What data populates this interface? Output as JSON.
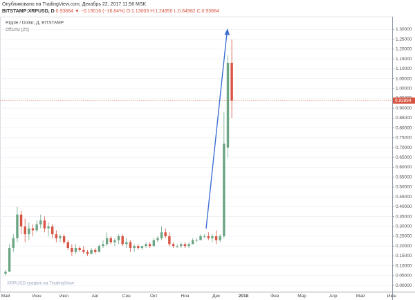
{
  "header": {
    "published": "Опубликовано на TradingView.com, Декабрь 22, 2017 11:56 MSK",
    "symbol": "BITSTAMP:XRPUSD, D",
    "change": "0.93884 ▼ −0.19016 (−16.84%)",
    "ohlc": "O:1.13003 H:1.24950 L:0.84982 C:0.93884"
  },
  "chart_data": {
    "type": "candlestick",
    "title": "Ripple / Dollar, Д, BITSTAMP",
    "indicator": "Объём (20)",
    "watermark": "XRPUSD график на TradingView",
    "categories": [
      "Май",
      null,
      null,
      null,
      null,
      null,
      null,
      null,
      "Июн",
      null,
      null,
      null,
      null,
      null,
      null,
      "Июл",
      null,
      null,
      null,
      null,
      null,
      null,
      null,
      "Авг",
      null,
      null,
      null,
      null,
      null,
      null,
      null,
      "Сен",
      null,
      null,
      null,
      null,
      null,
      null,
      "Окт",
      null,
      null,
      null,
      null,
      null,
      null,
      null,
      "Ноя",
      null,
      null,
      null,
      null,
      null,
      null,
      null,
      "Дек",
      null,
      null,
      null,
      null,
      null,
      null,
      "2018",
      null,
      null,
      null,
      null,
      null,
      null,
      null,
      "Фев",
      null,
      null,
      null,
      null,
      null,
      null,
      "Мар",
      null,
      null,
      null,
      null,
      null,
      null,
      null,
      "Апр",
      null,
      null,
      null,
      null,
      null,
      null,
      "Май",
      null,
      null,
      null,
      null,
      null,
      null,
      null,
      "Июн"
    ],
    "open": [
      0.06,
      0.07,
      0.19,
      0.24,
      0.36,
      0.3,
      0.26,
      0.29,
      0.28,
      0.31,
      0.33,
      0.29,
      0.3,
      0.26,
      0.24,
      0.25,
      0.22,
      0.19,
      0.17,
      0.19,
      0.18,
      0.17,
      0.16,
      0.18,
      0.17,
      0.2,
      0.21,
      0.24,
      0.22,
      0.23,
      0.25,
      0.21,
      0.22,
      0.19,
      0.2,
      0.19,
      0.2,
      0.21,
      0.2,
      0.23,
      0.24,
      0.27,
      0.25,
      0.21,
      0.2,
      0.2,
      0.21,
      0.2,
      0.21,
      0.23,
      0.23,
      0.25,
      0.25,
      0.24,
      0.25,
      0.23,
      0.25,
      0.7,
      1.13003,
      null,
      null,
      null,
      null,
      null,
      null,
      null,
      null,
      null,
      null,
      null,
      null,
      null,
      null,
      null,
      null,
      null,
      null,
      null,
      null,
      null,
      null,
      null,
      null,
      null,
      null,
      null,
      null,
      null,
      null,
      null,
      null,
      null,
      null,
      null,
      null,
      null,
      null,
      null,
      null,
      null
    ],
    "high": [
      0.08,
      0.21,
      0.26,
      0.4,
      0.38,
      0.34,
      0.32,
      0.31,
      0.33,
      0.36,
      0.35,
      0.32,
      0.31,
      0.28,
      0.26,
      0.26,
      0.23,
      0.21,
      0.21,
      0.2,
      0.2,
      0.18,
      0.19,
      0.19,
      0.21,
      0.23,
      0.27,
      0.25,
      0.24,
      0.26,
      0.26,
      0.24,
      0.23,
      0.21,
      0.21,
      0.2,
      0.22,
      0.22,
      0.24,
      0.25,
      0.3,
      0.29,
      0.27,
      0.22,
      0.21,
      0.22,
      0.22,
      0.22,
      0.24,
      0.24,
      0.26,
      0.26,
      0.27,
      0.26,
      0.28,
      0.26,
      0.88,
      1.17,
      1.2495,
      null,
      null,
      null,
      null,
      null,
      null,
      null,
      null,
      null,
      null,
      null,
      null,
      null,
      null,
      null,
      null,
      null,
      null,
      null,
      null,
      null,
      null,
      null,
      null,
      null,
      null,
      null,
      null,
      null,
      null,
      null,
      null,
      null,
      null,
      null,
      null,
      null,
      null,
      null,
      null,
      null
    ],
    "low": [
      0.05,
      0.07,
      0.17,
      0.22,
      0.26,
      0.22,
      0.23,
      0.25,
      0.27,
      0.29,
      0.27,
      0.25,
      0.24,
      0.22,
      0.22,
      0.21,
      0.18,
      0.15,
      0.16,
      0.17,
      0.16,
      0.15,
      0.16,
      0.16,
      0.17,
      0.19,
      0.2,
      0.21,
      0.2,
      0.21,
      0.2,
      0.19,
      0.17,
      0.17,
      0.18,
      0.18,
      0.19,
      0.19,
      0.2,
      0.22,
      0.23,
      0.24,
      0.2,
      0.19,
      0.19,
      0.19,
      0.19,
      0.19,
      0.21,
      0.22,
      0.23,
      0.24,
      0.23,
      0.22,
      0.21,
      0.22,
      0.24,
      0.65,
      0.84982,
      null,
      null,
      null,
      null,
      null,
      null,
      null,
      null,
      null,
      null,
      null,
      null,
      null,
      null,
      null,
      null,
      null,
      null,
      null,
      null,
      null,
      null,
      null,
      null,
      null,
      null,
      null,
      null,
      null,
      null,
      null,
      null,
      null,
      null,
      null,
      null,
      null,
      null,
      null,
      null,
      null
    ],
    "close": [
      0.07,
      0.19,
      0.24,
      0.36,
      0.3,
      0.26,
      0.29,
      0.28,
      0.31,
      0.33,
      0.29,
      0.3,
      0.26,
      0.24,
      0.25,
      0.22,
      0.19,
      0.17,
      0.19,
      0.18,
      0.17,
      0.16,
      0.18,
      0.17,
      0.2,
      0.21,
      0.24,
      0.22,
      0.23,
      0.25,
      0.21,
      0.22,
      0.19,
      0.2,
      0.19,
      0.2,
      0.21,
      0.2,
      0.23,
      0.24,
      0.27,
      0.25,
      0.21,
      0.2,
      0.2,
      0.21,
      0.2,
      0.21,
      0.23,
      0.23,
      0.25,
      0.25,
      0.24,
      0.25,
      0.23,
      0.25,
      0.72,
      1.13,
      0.93884,
      null,
      null,
      null,
      null,
      null,
      null,
      null,
      null,
      null,
      null,
      null,
      null,
      null,
      null,
      null,
      null,
      null,
      null,
      null,
      null,
      null,
      null,
      null,
      null,
      null,
      null,
      null,
      null,
      null,
      null,
      null,
      null,
      null,
      null,
      null,
      null,
      null,
      null,
      null,
      null,
      null
    ],
    "up_color": "#6ba583",
    "down_color": "#d75442",
    "ylim": [
      -0.035,
      1.365
    ],
    "yticks": [
      {
        "value": 0,
        "label": "0.00000"
      },
      {
        "value": 0.05,
        "label": "0.05000"
      },
      {
        "value": 0.1,
        "label": "0.10000"
      },
      {
        "value": 0.15,
        "label": "0.15000"
      },
      {
        "value": 0.2,
        "label": "0.20000"
      },
      {
        "value": 0.25,
        "label": "0.25000"
      },
      {
        "value": 0.3,
        "label": "0.30000"
      },
      {
        "value": 0.35,
        "label": "0.35000"
      },
      {
        "value": 0.4,
        "label": "0.40000"
      },
      {
        "value": 0.45,
        "label": "0.45000"
      },
      {
        "value": 0.5,
        "label": "0.50000"
      },
      {
        "value": 0.55,
        "label": "0.55000"
      },
      {
        "value": 0.6,
        "label": "0.60000"
      },
      {
        "value": 0.65,
        "label": "0.65000"
      },
      {
        "value": 0.7,
        "label": "0.70000"
      },
      {
        "value": 0.75,
        "label": "0.75000"
      },
      {
        "value": 0.8,
        "label": "0.80000"
      },
      {
        "value": 0.85,
        "label": "0.85000"
      },
      {
        "value": 0.9,
        "label": "0.90000"
      },
      {
        "value": 0.95,
        "label": "0.95000"
      },
      {
        "value": 1,
        "label": "1.00000"
      },
      {
        "value": 1.05,
        "label": "1.05000"
      },
      {
        "value": 1.1,
        "label": "1.10000"
      },
      {
        "value": 1.15,
        "label": "1.15000"
      },
      {
        "value": 1.2,
        "label": "1.20000"
      },
      {
        "value": 1.25,
        "label": "1.25000"
      },
      {
        "value": 1.3,
        "label": "1.30000"
      }
    ],
    "grid": true
  }
}
